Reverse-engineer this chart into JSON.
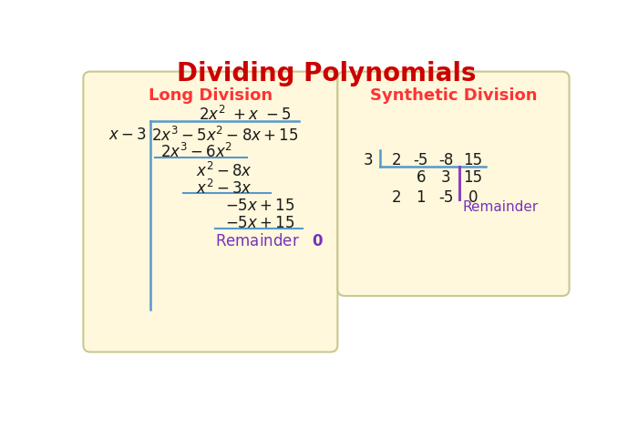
{
  "title": "Dividing Polynomials",
  "title_color": "#CC0000",
  "title_fontsize": 20,
  "bg_color": "#FFFFFF",
  "panel_color": "#FFF8DC",
  "panel_edge_color": "#C8C890",
  "left_panel_title": "Long Division",
  "right_panel_title": "Synthetic Division",
  "panel_title_color": "#FF3333",
  "math_color": "#1a1a1a",
  "blue_color": "#5599CC",
  "purple_color": "#8844BB",
  "remainder_color": "#7733BB"
}
